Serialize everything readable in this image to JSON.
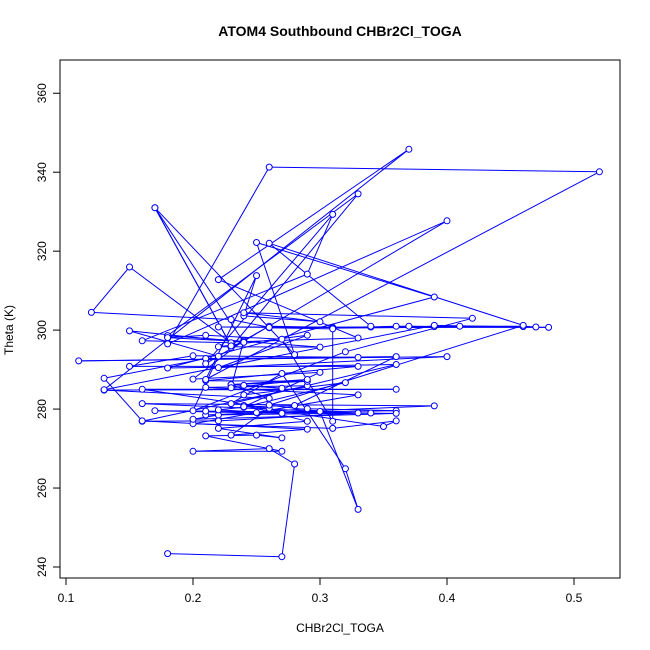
{
  "chart_data": {
    "type": "line",
    "title": "ATOM4 Southbound CHBr2Cl_TOGA",
    "xlabel": "CHBr2Cl_TOGA",
    "ylabel": "Theta (K)",
    "xlim": [
      0.1,
      0.52
    ],
    "ylim": [
      240,
      360
    ],
    "xticks": [
      0.1,
      0.2,
      0.3,
      0.4,
      0.5
    ],
    "yticks": [
      240,
      260,
      280,
      300,
      320,
      340,
      360
    ],
    "grid": false,
    "legend": "none",
    "series": [
      {
        "color": "#0000ff",
        "marker": "open-circle",
        "points": [
          [
            0.18,
            243.4
          ],
          [
            0.27,
            242.6
          ],
          [
            0.28,
            266.1
          ],
          [
            0.26,
            270.0
          ],
          [
            0.2,
            269.3
          ],
          [
            0.27,
            269.3
          ],
          [
            0.21,
            273.2
          ],
          [
            0.25,
            273.4
          ],
          [
            0.27,
            272.7
          ],
          [
            0.22,
            275.1
          ],
          [
            0.29,
            276.9
          ],
          [
            0.24,
            280.9
          ],
          [
            0.35,
            275.6
          ],
          [
            0.36,
            277.0
          ],
          [
            0.31,
            275.1
          ],
          [
            0.2,
            276.3
          ],
          [
            0.33,
            283.6
          ],
          [
            0.21,
            285.5
          ],
          [
            0.29,
            285.9
          ],
          [
            0.16,
            276.9
          ],
          [
            0.22,
            277.0
          ],
          [
            0.33,
            279.0
          ],
          [
            0.16,
            281.4
          ],
          [
            0.39,
            280.8
          ],
          [
            0.21,
            278.5
          ],
          [
            0.34,
            279.0
          ],
          [
            0.25,
            279.1
          ],
          [
            0.36,
            279.6
          ],
          [
            0.29,
            280.1
          ],
          [
            0.22,
            278.5
          ],
          [
            0.2,
            277.4
          ],
          [
            0.36,
            278.9
          ],
          [
            0.21,
            279.5
          ],
          [
            0.17,
            279.6
          ],
          [
            0.27,
            278.9
          ],
          [
            0.22,
            279.8
          ],
          [
            0.24,
            280.5
          ],
          [
            0.32,
            286.7
          ],
          [
            0.24,
            283.6
          ],
          [
            0.24,
            286.0
          ],
          [
            0.27,
            285.3
          ],
          [
            0.23,
            286.2
          ],
          [
            0.29,
            287.0
          ],
          [
            0.21,
            287.2
          ],
          [
            0.33,
            290.8
          ],
          [
            0.15,
            290.8
          ],
          [
            0.2,
            293.5
          ],
          [
            0.33,
            293.1
          ],
          [
            0.21,
            292.8
          ],
          [
            0.13,
            287.8
          ],
          [
            0.16,
            277.0
          ],
          [
            0.29,
            274.9
          ],
          [
            0.23,
            273.4
          ],
          [
            0.26,
            280.2
          ],
          [
            0.16,
            285.0
          ],
          [
            0.36,
            285.0
          ],
          [
            0.13,
            284.8
          ],
          [
            0.26,
            282.7
          ],
          [
            0.23,
            286.2
          ],
          [
            0.29,
            287.5
          ],
          [
            0.23,
            285.4
          ],
          [
            0.24,
            297.4
          ],
          [
            0.2,
            287.6
          ],
          [
            0.3,
            289.3
          ],
          [
            0.24,
            280.6
          ],
          [
            0.28,
            280.9
          ],
          [
            0.36,
            293.3
          ],
          [
            0.11,
            292.2
          ],
          [
            0.4,
            293.3
          ],
          [
            0.22,
            290.5
          ],
          [
            0.29,
            298.7
          ],
          [
            0.22,
            295.8
          ],
          [
            0.3,
            295.7
          ],
          [
            0.18,
            298.6
          ],
          [
            0.33,
            334.5
          ],
          [
            0.23,
            295.6
          ],
          [
            0.26,
            301.0
          ],
          [
            0.31,
            300.7
          ],
          [
            0.34,
            300.8
          ],
          [
            0.36,
            301.0
          ],
          [
            0.39,
            300.9
          ],
          [
            0.41,
            301.0
          ],
          [
            0.46,
            301.0
          ],
          [
            0.47,
            300.8
          ],
          [
            0.37,
            301.0
          ],
          [
            0.31,
            300.5
          ],
          [
            0.46,
            300.9
          ],
          [
            0.26,
            300.6
          ],
          [
            0.31,
            300.3
          ],
          [
            0.31,
            276.9
          ],
          [
            0.27,
            297.7
          ],
          [
            0.21,
            298.7
          ],
          [
            0.18,
            298.1
          ],
          [
            0.24,
            297.1
          ],
          [
            0.33,
            298.0
          ],
          [
            0.22,
            312.8
          ],
          [
            0.37,
            345.8
          ],
          [
            0.13,
            284.9
          ],
          [
            0.39,
            301.2
          ],
          [
            0.48,
            300.7
          ],
          [
            0.22,
            300.8
          ],
          [
            0.26,
            300.7
          ],
          [
            0.23,
            302.7
          ],
          [
            0.12,
            304.5
          ],
          [
            0.15,
            316.0
          ],
          [
            0.23,
            296.8
          ],
          [
            0.16,
            297.3
          ],
          [
            0.29,
            314.2
          ],
          [
            0.31,
            329.3
          ],
          [
            0.21,
            291.5
          ],
          [
            0.4,
            327.7
          ],
          [
            0.18,
            296.5
          ],
          [
            0.26,
            341.3
          ],
          [
            0.52,
            340.1
          ],
          [
            0.21,
            287.5
          ],
          [
            0.25,
            313.8
          ],
          [
            0.24,
            303.6
          ],
          [
            0.3,
            302.1
          ],
          [
            0.24,
            304.4
          ],
          [
            0.42,
            303.0
          ],
          [
            0.32,
            294.5
          ],
          [
            0.2,
            279.6
          ],
          [
            0.22,
            293.4
          ],
          [
            0.15,
            299.8
          ],
          [
            0.24,
            296.9
          ],
          [
            0.17,
            331.0
          ],
          [
            0.23,
            296.0
          ],
          [
            0.17,
            331.0
          ],
          [
            0.28,
            293.8
          ],
          [
            0.25,
            322.2
          ],
          [
            0.39,
            308.4
          ],
          [
            0.18,
            290.4
          ],
          [
            0.36,
            291.3
          ],
          [
            0.23,
            281.4
          ],
          [
            0.27,
            289.0
          ],
          [
            0.32,
            264.9
          ],
          [
            0.33,
            254.6
          ],
          [
            0.3,
            279.4
          ],
          [
            0.26,
            281.0
          ],
          [
            0.46,
            301.2
          ],
          [
            0.26,
            322.0
          ],
          [
            0.34,
            301.0
          ]
        ]
      }
    ]
  }
}
